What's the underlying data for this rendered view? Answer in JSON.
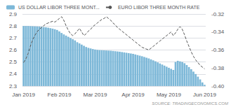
{
  "chart_data": {
    "type": "bar",
    "categories": [
      "Jan 2019",
      null,
      null,
      null,
      null,
      null,
      null,
      null,
      null,
      null,
      null,
      null,
      null,
      null,
      null,
      null,
      "Feb 2019",
      null,
      null,
      null,
      null,
      null,
      null,
      null,
      null,
      null,
      null,
      null,
      null,
      null,
      null,
      null,
      "Mar 2019",
      null,
      null,
      null,
      null,
      null,
      null,
      null,
      null,
      null,
      null,
      null,
      null,
      null,
      null,
      null,
      null,
      "Apr 2019",
      null,
      null,
      null,
      null,
      null,
      null,
      null,
      null,
      null,
      null,
      null,
      null,
      null,
      null,
      null,
      "May 2019",
      null,
      null,
      null,
      null,
      null,
      null,
      null,
      null,
      null,
      null,
      null,
      null,
      null,
      null,
      null,
      "Jun 2019"
    ],
    "series": [
      {
        "name": "US DOLLAR LIBOR THREE MONT...",
        "type": "bar",
        "color": "#7db8d8",
        "values": [
          2.8,
          2.8,
          2.8,
          2.799,
          2.798,
          2.797,
          2.796,
          2.795,
          2.793,
          2.791,
          2.789,
          2.786,
          2.782,
          2.778,
          2.773,
          2.767,
          2.755,
          2.742,
          2.73,
          2.72,
          2.71,
          2.7,
          2.69,
          2.68,
          2.665,
          2.655,
          2.645,
          2.635,
          2.625,
          2.618,
          2.613,
          2.608,
          2.604,
          2.601,
          2.599,
          2.598,
          2.597,
          2.596,
          2.595,
          2.594,
          2.592,
          2.59,
          2.588,
          2.586,
          2.583,
          2.58,
          2.577,
          2.574,
          2.571,
          2.568,
          2.563,
          2.558,
          2.553,
          2.548,
          2.542,
          2.536,
          2.53,
          2.522,
          2.514,
          2.506,
          2.497,
          2.488,
          2.479,
          2.47,
          2.461,
          2.452,
          2.443,
          2.434,
          2.5,
          2.51,
          2.505,
          2.5,
          2.49,
          2.475,
          2.458,
          2.44,
          2.42,
          2.4,
          2.378,
          2.355,
          2.33,
          2.31
        ]
      },
      {
        "name": "EURO LIBOR THREE MONTH RATE",
        "type": "line",
        "axis": "y2",
        "color": "#555555",
        "line_style": "dashed",
        "values": [
          -0.374,
          -0.37,
          -0.364,
          -0.356,
          -0.349,
          -0.344,
          -0.34,
          -0.337,
          -0.335,
          -0.333,
          -0.331,
          -0.33,
          -0.329,
          -0.328,
          -0.329,
          -0.327,
          -0.325,
          -0.323,
          -0.327,
          -0.333,
          -0.338,
          -0.342,
          -0.344,
          -0.342,
          -0.339,
          -0.336,
          -0.34,
          -0.344,
          -0.342,
          -0.339,
          -0.337,
          -0.334,
          -0.332,
          -0.33,
          -0.328,
          -0.326,
          -0.325,
          -0.323,
          -0.325,
          -0.327,
          -0.33,
          -0.332,
          -0.335,
          -0.337,
          -0.339,
          -0.341,
          -0.343,
          -0.345,
          -0.347,
          -0.349,
          -0.351,
          -0.353,
          -0.355,
          -0.357,
          -0.358,
          -0.359,
          -0.36,
          -0.358,
          -0.356,
          -0.354,
          -0.352,
          -0.35,
          -0.348,
          -0.346,
          -0.344,
          -0.342,
          -0.34,
          -0.344,
          -0.341,
          -0.337,
          -0.334,
          -0.337,
          -0.343,
          -0.35,
          -0.356,
          -0.362,
          -0.367,
          -0.371,
          -0.374,
          -0.377,
          -0.379,
          -0.381
        ]
      }
    ],
    "ylim": [
      2.3,
      2.9
    ],
    "yticks": [
      2.3,
      2.4,
      2.5,
      2.6,
      2.7,
      2.8,
      2.9
    ],
    "y2lim": [
      -0.4,
      -0.32
    ],
    "y2ticks": [
      {
        "value": -0.4,
        "label": "-0.40"
      },
      -0.38,
      -0.36,
      -0.34,
      -0.32
    ],
    "grid": true,
    "legend": "upper left",
    "annotations": [
      "SOURCE: TRADINGECONOMICS.COM"
    ]
  }
}
